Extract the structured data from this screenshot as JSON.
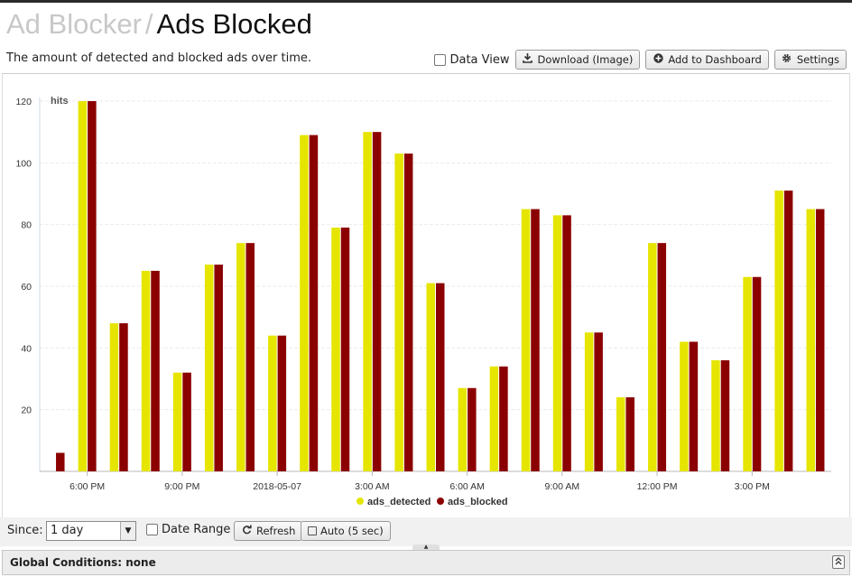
{
  "header": {
    "parent": "Ad Blocker",
    "separator": "/",
    "title": "Ads Blocked"
  },
  "description": "The amount of detected and blocked ads over time.",
  "toolbar": {
    "data_view_label": "Data View",
    "download_label": "Download (Image)",
    "add_dashboard_label": "Add to Dashboard",
    "settings_label": "Settings"
  },
  "controls": {
    "since_label": "Since:",
    "since_value": "1 day",
    "date_range_label": "Date Range",
    "refresh_label": "Refresh",
    "auto_label": "Auto (5 sec)"
  },
  "global_conditions": "Global Conditions: none",
  "colors": {
    "ads_detected": "#e5e500",
    "ads_blocked": "#8b0000"
  },
  "chart_data": {
    "type": "bar",
    "ylabel": "hits",
    "ylim": [
      0,
      120
    ],
    "yticks": [
      20,
      40,
      60,
      80,
      100,
      120
    ],
    "x_tick_labels": [
      {
        "label": "6:00 PM",
        "slot": 1
      },
      {
        "label": "9:00 PM",
        "slot": 4
      },
      {
        "label": "2018-05-07",
        "slot": 7
      },
      {
        "label": "3:00 AM",
        "slot": 10
      },
      {
        "label": "6:00 AM",
        "slot": 13
      },
      {
        "label": "9:00 AM",
        "slot": 16
      },
      {
        "label": "12:00 PM",
        "slot": 19
      },
      {
        "label": "3:00 PM",
        "slot": 22
      }
    ],
    "legend_position": "bottom-center",
    "grid": true,
    "series": [
      {
        "name": "ads_detected",
        "color": "#e5e500",
        "values": [
          null,
          120,
          48,
          65,
          32,
          67,
          74,
          44,
          109,
          79,
          110,
          103,
          61,
          27,
          34,
          85,
          83,
          45,
          24,
          74,
          42,
          36,
          63,
          91,
          85
        ]
      },
      {
        "name": "ads_blocked",
        "color": "#8b0000",
        "values": [
          6,
          120,
          48,
          65,
          32,
          67,
          74,
          44,
          109,
          79,
          110,
          103,
          61,
          27,
          34,
          85,
          83,
          45,
          24,
          74,
          42,
          36,
          63,
          91,
          85
        ]
      }
    ]
  }
}
